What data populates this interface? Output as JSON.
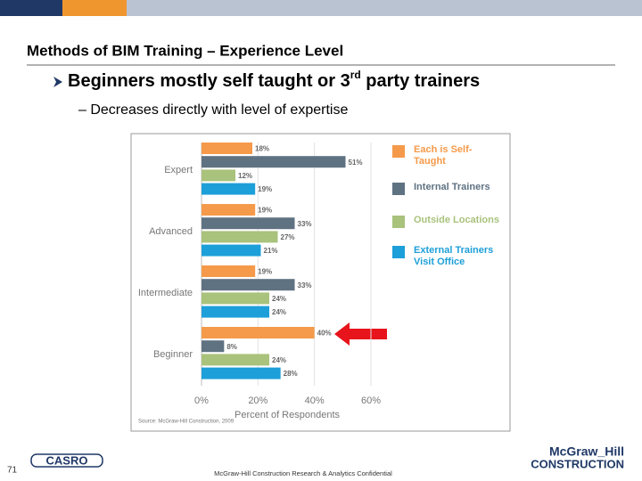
{
  "slide": {
    "title": "Methods of BIM Training – Experience Level",
    "bullet": {
      "before": "Beginners mostly self taught or 3",
      "sup": "rd",
      "after": " party trainers"
    },
    "sub_bullet": "– Decreases directly with level of expertise",
    "page_number": "71",
    "footer": "McGraw-Hill Construction Research & Analytics Confidential",
    "logo_left": "CASRO",
    "logo_right": [
      "McGraw_Hill",
      "CONSTRUCTION"
    ]
  },
  "chart_data": {
    "type": "bar",
    "orientation": "horizontal",
    "categories": [
      "Expert",
      "Advanced",
      "Intermediate",
      "Beginner"
    ],
    "series": [
      {
        "name": "Each is Self-Taught",
        "color": "#f59a4a",
        "values": [
          18,
          19,
          19,
          40
        ],
        "value_labels": [
          "18%",
          "19%",
          "19%",
          "40%"
        ]
      },
      {
        "name": "Internal Trainers",
        "color": "#5f7282",
        "values": [
          51,
          33,
          33,
          8
        ],
        "value_labels": [
          "51%",
          "33%",
          "33%",
          "8%"
        ]
      },
      {
        "name": "Outside Locations",
        "color": "#a9c27c",
        "values": [
          12,
          27,
          24,
          24
        ],
        "value_labels": [
          "12%",
          "27%",
          "24%",
          "24%"
        ]
      },
      {
        "name": "External Trainers Visit Office",
        "color": "#1d9fd9",
        "values": [
          19,
          21,
          24,
          28
        ],
        "value_labels": [
          "19%",
          "21%",
          "24%",
          "28%"
        ]
      }
    ],
    "xlim": [
      0,
      60
    ],
    "xticks": [
      {
        "value": 0,
        "label": "0%"
      },
      {
        "value": 20,
        "label": "20%"
      },
      {
        "value": 40,
        "label": "40%"
      },
      {
        "value": 60,
        "label": "60%"
      }
    ],
    "xlabel": "Percent of Respondents",
    "source": "Source: McGraw-Hill Construction, 2009",
    "grid": true
  }
}
